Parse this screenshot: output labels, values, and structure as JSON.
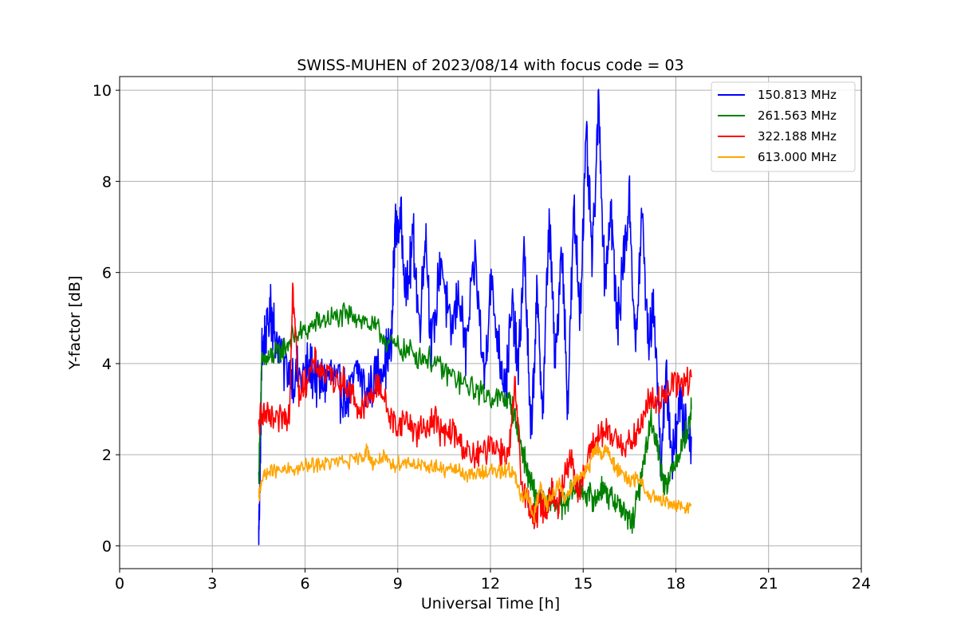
{
  "chart_data": {
    "type": "line",
    "title": "SWISS-MUHEN of 2023/08/14 with focus code = 03",
    "xlabel": "Universal Time [h]",
    "ylabel": "Y-factor [dB]",
    "xlim": [
      0,
      24
    ],
    "ylim": [
      -0.5,
      10.3
    ],
    "xticks": [
      0,
      3,
      6,
      9,
      12,
      15,
      18,
      21,
      24
    ],
    "yticks": [
      0,
      2,
      4,
      6,
      8,
      10
    ],
    "grid": true,
    "legend_position": "top-right",
    "series": [
      {
        "name": "150.813 MHz",
        "color": "#0000ff",
        "x": [
          4.5,
          4.55,
          4.6,
          4.7,
          4.9,
          5.0,
          5.3,
          5.6,
          5.9,
          6.2,
          6.5,
          6.8,
          7.1,
          7.4,
          7.7,
          8.0,
          8.3,
          8.6,
          8.8,
          8.9,
          9.1,
          9.3,
          9.5,
          9.7,
          9.9,
          10.1,
          10.4,
          10.7,
          11.0,
          11.2,
          11.5,
          11.8,
          12.0,
          12.3,
          12.5,
          12.7,
          12.9,
          13.1,
          13.3,
          13.5,
          13.7,
          13.9,
          14.1,
          14.3,
          14.5,
          14.7,
          14.9,
          15.1,
          15.3,
          15.5,
          15.7,
          15.9,
          16.1,
          16.3,
          16.5,
          16.7,
          16.9,
          17.1,
          17.3,
          17.5,
          17.7,
          17.9,
          18.1,
          18.3,
          18.5
        ],
        "y": [
          0.2,
          1.8,
          4.2,
          4.6,
          5.2,
          4.8,
          4.0,
          3.8,
          3.7,
          3.9,
          3.5,
          3.8,
          3.4,
          3.2,
          3.9,
          3.3,
          3.8,
          4.1,
          4.4,
          6.9,
          7.1,
          5.5,
          6.8,
          4.8,
          6.9,
          4.2,
          6.4,
          4.6,
          5.6,
          4.2,
          6.3,
          3.6,
          5.8,
          4.2,
          3.5,
          5.2,
          3.8,
          6.6,
          2.3,
          5.4,
          3.0,
          7.3,
          3.8,
          6.8,
          3.1,
          7.3,
          5.2,
          8.9,
          6.2,
          9.7,
          5.8,
          7.5,
          4.8,
          6.3,
          7.6,
          4.2,
          7.3,
          4.6,
          5.3,
          2.0,
          3.6,
          1.8,
          3.2,
          2.6,
          2.4
        ]
      },
      {
        "name": "261.563 MHz",
        "color": "#008000",
        "x": [
          4.5,
          4.6,
          4.8,
          5.0,
          5.3,
          5.6,
          6.0,
          6.4,
          6.8,
          7.2,
          7.6,
          8.0,
          8.4,
          8.8,
          9.2,
          9.6,
          10.0,
          10.4,
          10.8,
          11.2,
          11.6,
          12.0,
          12.4,
          12.6,
          12.8,
          13.0,
          13.2,
          13.4,
          13.6,
          13.8,
          14.0,
          14.2,
          14.4,
          14.6,
          14.8,
          15.0,
          15.2,
          15.4,
          15.6,
          15.8,
          16.0,
          16.2,
          16.4,
          16.6,
          16.8,
          17.0,
          17.2,
          17.4,
          17.6,
          17.8,
          18.0,
          18.2,
          18.4,
          18.5
        ],
        "y": [
          1.5,
          4.0,
          4.1,
          4.2,
          4.3,
          4.6,
          4.7,
          4.9,
          5.0,
          5.0,
          5.1,
          4.9,
          4.7,
          4.4,
          4.3,
          4.2,
          4.1,
          3.9,
          3.7,
          3.5,
          3.4,
          3.3,
          3.2,
          3.2,
          2.8,
          2.2,
          1.6,
          1.2,
          1.0,
          0.9,
          1.0,
          0.9,
          0.9,
          1.2,
          1.3,
          1.2,
          1.1,
          1.0,
          1.3,
          1.1,
          1.0,
          0.9,
          0.6,
          0.5,
          1.2,
          2.0,
          2.8,
          2.2,
          1.4,
          1.5,
          1.9,
          2.2,
          2.6,
          3.0
        ]
      },
      {
        "name": "322.188 MHz",
        "color": "#ff0000",
        "x": [
          4.5,
          4.6,
          4.8,
          5.0,
          5.3,
          5.5,
          5.6,
          5.8,
          6.0,
          6.3,
          6.6,
          6.9,
          7.2,
          7.5,
          7.8,
          8.1,
          8.4,
          8.7,
          9.0,
          9.3,
          9.6,
          9.9,
          10.2,
          10.5,
          10.8,
          11.1,
          11.4,
          11.7,
          12.0,
          12.3,
          12.6,
          12.8,
          13.0,
          13.2,
          13.4,
          13.6,
          13.8,
          14.0,
          14.2,
          14.4,
          14.6,
          14.8,
          15.0,
          15.3,
          15.6,
          15.9,
          16.2,
          16.5,
          16.8,
          17.1,
          17.4,
          17.7,
          18.0,
          18.2,
          18.5
        ],
        "y": [
          2.5,
          3.0,
          2.8,
          2.7,
          2.8,
          3.0,
          5.7,
          3.3,
          3.6,
          4.0,
          3.8,
          3.7,
          3.6,
          3.4,
          2.9,
          3.2,
          3.6,
          2.9,
          2.6,
          2.8,
          2.5,
          2.6,
          2.8,
          2.4,
          2.5,
          2.2,
          1.9,
          2.0,
          2.3,
          2.1,
          2.0,
          3.5,
          1.4,
          1.0,
          0.6,
          0.9,
          0.8,
          1.2,
          0.8,
          1.6,
          2.0,
          1.2,
          1.5,
          2.2,
          2.5,
          2.4,
          2.3,
          2.2,
          2.5,
          3.2,
          3.1,
          3.4,
          3.6,
          3.5,
          3.7
        ]
      },
      {
        "name": "613.000 MHz",
        "color": "#ffa500",
        "x": [
          4.5,
          4.6,
          4.8,
          5.0,
          5.4,
          5.8,
          6.2,
          6.6,
          7.0,
          7.4,
          7.8,
          8.0,
          8.2,
          8.5,
          8.8,
          9.0,
          9.3,
          9.6,
          9.9,
          10.2,
          10.5,
          10.8,
          11.1,
          11.4,
          11.7,
          12.0,
          12.3,
          12.6,
          12.8,
          13.0,
          13.2,
          13.4,
          13.6,
          13.8,
          14.0,
          14.2,
          14.4,
          14.6,
          14.8,
          15.0,
          15.2,
          15.4,
          15.6,
          15.8,
          16.0,
          16.2,
          16.5,
          16.8,
          17.1,
          17.4,
          17.7,
          18.0,
          18.3,
          18.5
        ],
        "y": [
          1.0,
          1.5,
          1.6,
          1.65,
          1.65,
          1.7,
          1.75,
          1.8,
          1.85,
          1.85,
          1.9,
          2.1,
          1.8,
          1.95,
          1.75,
          1.8,
          1.85,
          1.8,
          1.7,
          1.75,
          1.65,
          1.7,
          1.6,
          1.55,
          1.6,
          1.65,
          1.6,
          1.7,
          1.5,
          1.0,
          1.2,
          0.6,
          1.3,
          0.9,
          1.1,
          1.4,
          1.0,
          1.3,
          1.5,
          1.6,
          1.7,
          2.2,
          2.0,
          2.1,
          1.8,
          1.6,
          1.4,
          1.5,
          1.1,
          1.0,
          0.95,
          0.9,
          0.85,
          0.9
        ]
      }
    ]
  }
}
